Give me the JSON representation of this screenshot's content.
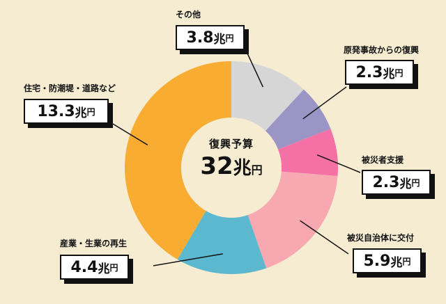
{
  "chart_data": {
    "type": "pie",
    "title": "復興予算",
    "total": {
      "number": "32",
      "unit1": "兆",
      "unit2": "円"
    },
    "slices": [
      {
        "label": "その他",
        "value": 3.8,
        "number": "3.8",
        "unit1": "兆",
        "unit2": "円",
        "color": "#d6d6d6"
      },
      {
        "label": "原発事故からの復興",
        "value": 2.3,
        "number": "2.3",
        "unit1": "兆",
        "unit2": "円",
        "color": "#9b95c6"
      },
      {
        "label": "被災者支援",
        "value": 2.3,
        "number": "2.3",
        "unit1": "兆",
        "unit2": "円",
        "color": "#f571a5"
      },
      {
        "label": "被災自治体に交付",
        "value": 5.9,
        "number": "5.9",
        "unit1": "兆",
        "unit2": "円",
        "color": "#f8a8b1"
      },
      {
        "label": "産業・生業の再生",
        "value": 4.4,
        "number": "4.4",
        "unit1": "兆",
        "unit2": "円",
        "color": "#5cb8ce"
      },
      {
        "label": "住宅・防潮堤・道路など",
        "value": 13.3,
        "number": "13.3",
        "unit1": "兆",
        "unit2": "円",
        "color": "#f9ac32"
      }
    ]
  }
}
